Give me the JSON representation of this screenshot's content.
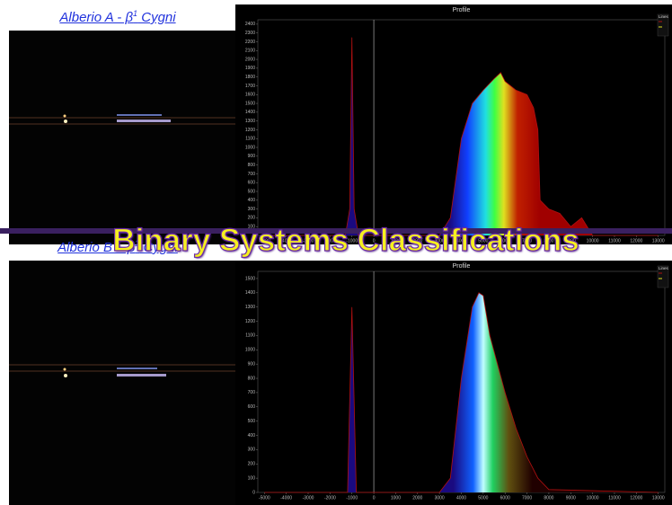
{
  "overlay_title": "Binary Systems Classifications",
  "panels": [
    {
      "label": {
        "text": "Alberio A - β",
        "sup": "1",
        "suffix": " Cygni"
      }
    },
    {
      "label": {
        "text": "Alberio B – β",
        "sup": "2",
        "suffix": " Cygni"
      }
    }
  ],
  "charts": [
    {
      "type": "line",
      "title": "Profile",
      "legend_title": "Lines",
      "color": "#b01010",
      "xlim": [
        -5300,
        13300
      ],
      "ylim": [
        0,
        2450
      ],
      "xticks": [
        -5000,
        -4000,
        -3000,
        -2000,
        -1000,
        0,
        1000,
        2000,
        3000,
        4000,
        5000,
        6000,
        7000,
        8000,
        9000,
        10000,
        11000,
        12000,
        13000
      ],
      "yticks": [
        0,
        100,
        200,
        300,
        400,
        500,
        600,
        700,
        800,
        900,
        1000,
        1100,
        1200,
        1300,
        1400,
        1500,
        1600,
        1700,
        1800,
        1900,
        2000,
        2100,
        2200,
        2300,
        2400
      ],
      "x": [
        -5000,
        -1300,
        -1100,
        -1000,
        -900,
        -700,
        3000,
        3500,
        4000,
        4500,
        5000,
        5500,
        5800,
        6000,
        6500,
        7000,
        7300,
        7500,
        7600,
        8000,
        8500,
        9000,
        9500,
        10000,
        13000
      ],
      "values": [
        0,
        0,
        300,
        2250,
        300,
        0,
        0,
        200,
        1100,
        1500,
        1650,
        1780,
        1850,
        1750,
        1650,
        1600,
        1450,
        1200,
        400,
        300,
        250,
        100,
        200,
        0,
        0
      ]
    },
    {
      "type": "line",
      "title": "Profile",
      "legend_title": "Lines",
      "color": "#b01010",
      "xlim": [
        -5300,
        13300
      ],
      "ylim": [
        0,
        1550
      ],
      "xticks": [
        -5000,
        -4000,
        -3000,
        -2000,
        -1000,
        0,
        1000,
        2000,
        3000,
        4000,
        5000,
        6000,
        7000,
        8000,
        9000,
        10000,
        11000,
        12000,
        13000
      ],
      "yticks": [
        0,
        100,
        200,
        300,
        400,
        500,
        600,
        700,
        800,
        900,
        1000,
        1100,
        1200,
        1300,
        1400,
        1500
      ],
      "x": [
        -5000,
        -1200,
        -1000,
        -800,
        3000,
        3500,
        4000,
        4500,
        4800,
        5000,
        5300,
        6000,
        6500,
        7000,
        7500,
        8000,
        13000
      ],
      "values": [
        0,
        0,
        1300,
        0,
        0,
        100,
        800,
        1300,
        1400,
        1380,
        1100,
        700,
        450,
        250,
        100,
        20,
        0
      ]
    }
  ]
}
